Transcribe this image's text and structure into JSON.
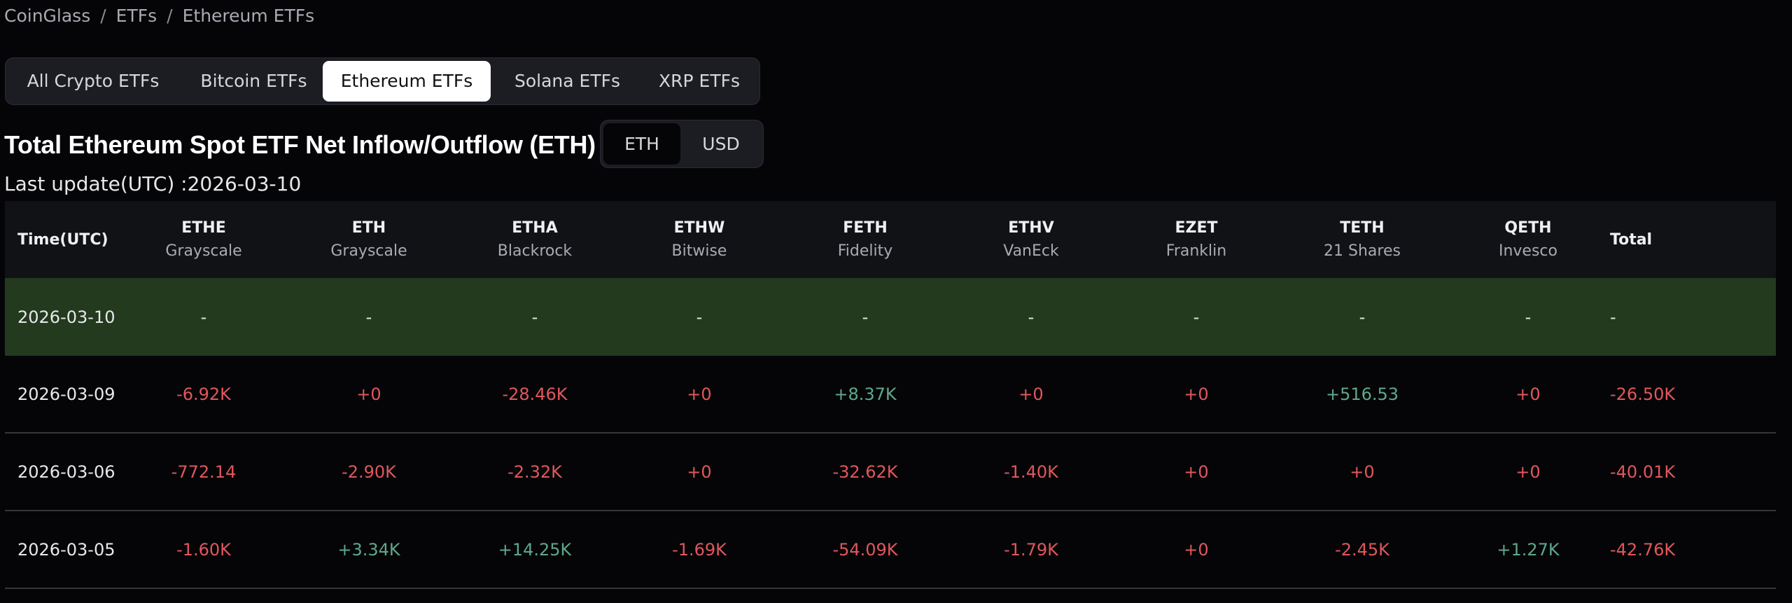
{
  "breadcrumb": {
    "items": [
      "CoinGlass",
      "ETFs",
      "Ethereum ETFs"
    ],
    "separator": "/"
  },
  "tabs": [
    "All Crypto ETFs",
    "Bitcoin ETFs",
    "Ethereum ETFs",
    "Solana ETFs",
    "XRP ETFs"
  ],
  "title": "Total Ethereum Spot ETF Net Inflow/Outflow (ETH)",
  "unit_toggle": [
    "ETH",
    "USD"
  ],
  "last_update": "Last update(UTC) :2026-03-10",
  "table": {
    "columns": [
      [
        "Time(UTC)"
      ],
      [
        "ETHE",
        "Grayscale"
      ],
      [
        "ETH",
        "Grayscale"
      ],
      [
        "ETHA",
        "Blackrock"
      ],
      [
        "ETHW",
        "Bitwise"
      ],
      [
        "FETH",
        "Fidelity"
      ],
      [
        "ETHV",
        "VanEck"
      ],
      [
        "EZET",
        "Franklin"
      ],
      [
        "TETH",
        "21 Shares"
      ],
      [
        "QETH",
        "Invesco"
      ],
      [
        "Total"
      ]
    ],
    "rows": [
      [
        "2026-03-10",
        "-",
        "-",
        "-",
        "-",
        "-",
        "-",
        "-",
        "-",
        "-",
        "-"
      ],
      [
        "2026-03-09",
        "-6.92K",
        "+0",
        "-28.46K",
        "+0",
        "+8.37K",
        "+0",
        "+0",
        "+516.53",
        "+0",
        "-26.50K"
      ],
      [
        "2026-03-06",
        "-772.14",
        "-2.90K",
        "-2.32K",
        "+0",
        "-32.62K",
        "-1.40K",
        "+0",
        "+0",
        "+0",
        "-40.01K"
      ],
      [
        "2026-03-05",
        "-1.60K",
        "+3.34K",
        "+14.25K",
        "-1.69K",
        "-54.09K",
        "-1.79K",
        "+0",
        "-2.45K",
        "+1.27K",
        "-42.76K"
      ]
    ]
  }
}
